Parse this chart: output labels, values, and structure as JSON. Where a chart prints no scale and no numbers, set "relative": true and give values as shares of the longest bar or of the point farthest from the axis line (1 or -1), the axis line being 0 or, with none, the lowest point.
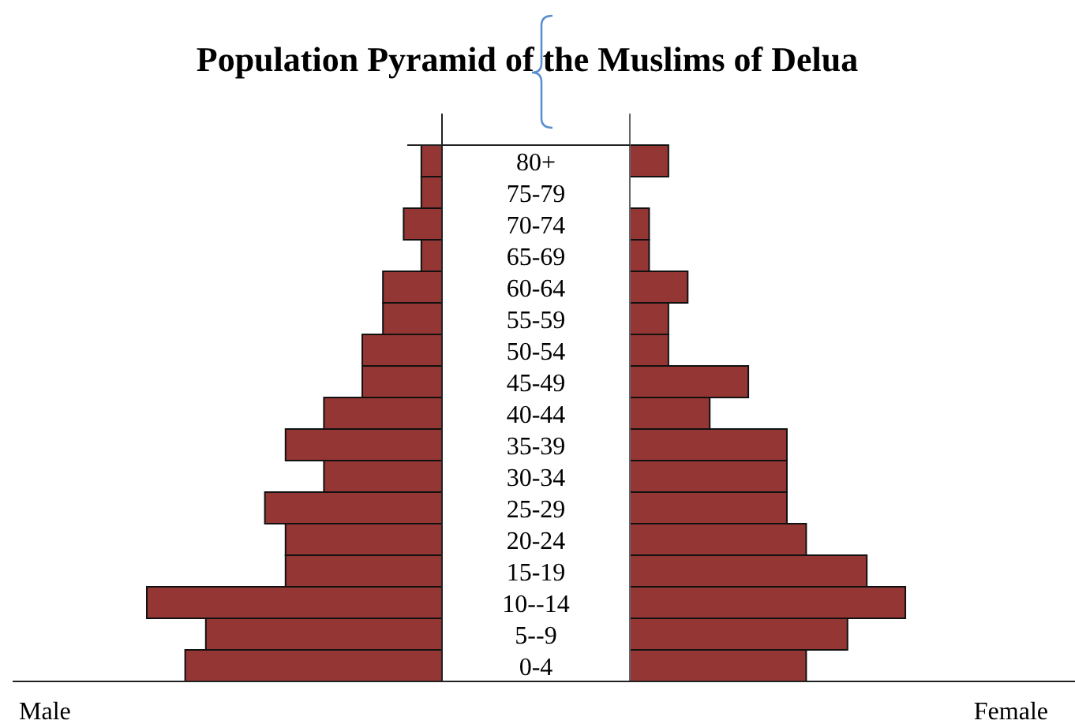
{
  "chart_data": [
    {
      "type": "bar",
      "orientation": "horizontal",
      "relative": true,
      "title": "Population Pyramid of the Muslims of Delua",
      "categories": [
        "80+",
        "75-79",
        "70-74",
        "65-69",
        "60-64",
        "55-59",
        "50-54",
        "45-49",
        "40-44",
        "35-39",
        "30-34",
        "25-29",
        "20-24",
        "15-19",
        "10--14",
        "5--9",
        "0-4"
      ],
      "series": [
        {
          "name": "Male",
          "color": "#943634",
          "values": [
            -0.07,
            -0.07,
            -0.13,
            -0.07,
            -0.2,
            -0.2,
            -0.27,
            -0.27,
            -0.4,
            -0.53,
            -0.4,
            -0.6,
            -0.53,
            -0.53,
            -1,
            -0.8,
            -0.87
          ]
        }
      ]
    },
    {
      "type": "bar",
      "orientation": "horizontal",
      "relative": true,
      "categories": [
        null,
        null,
        null,
        null,
        null,
        null,
        null,
        null,
        null,
        null,
        null,
        null,
        null,
        null,
        null,
        null,
        null
      ],
      "series": [
        {
          "name": "Female",
          "color": "#943634",
          "values": [
            0.14,
            0,
            0.07,
            0.07,
            0.21,
            0.14,
            0.14,
            0.43,
            0.29,
            0.57,
            0.57,
            0.57,
            0.64,
            0.86,
            1,
            0.79,
            0.64
          ]
        }
      ]
    }
  ]
}
